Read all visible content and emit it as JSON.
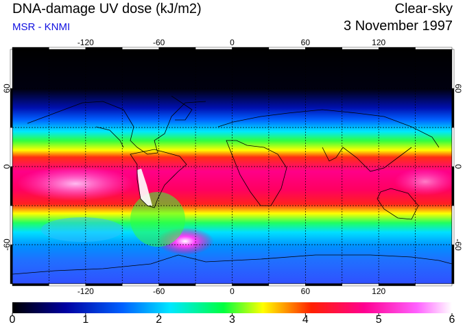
{
  "title": "DNA-damage UV dose (kJ/m2)",
  "subtitle": "MSR - KNMI",
  "sky_condition": "Clear-sky",
  "date": "3 November 1997",
  "map": {
    "lon_ticks": [
      "-120",
      "-60",
      "0",
      "60",
      "120"
    ],
    "lat_ticks": [
      "60",
      "0",
      "-60"
    ],
    "grid": true,
    "projection": "equirectangular"
  },
  "colorbar": {
    "labels": [
      "0",
      "1",
      "2",
      "3",
      "4",
      "5",
      "6"
    ],
    "min": 0,
    "max": 6,
    "stops": [
      "#000000",
      "#0000a0",
      "#0050ff",
      "#00e0ff",
      "#00ff60",
      "#ffff00",
      "#ff2000",
      "#ff0090",
      "#ff50ff",
      "#ffffff"
    ]
  },
  "colors": {
    "subtitle": "#1010e0",
    "map_background": "#000000"
  }
}
